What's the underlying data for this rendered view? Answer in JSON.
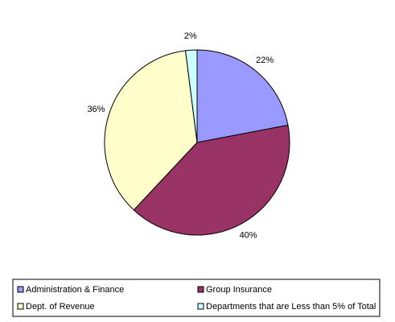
{
  "chart_data": {
    "type": "pie",
    "categories": [
      "Administration & Finance",
      "Group Insurance",
      "Dept. of Revenue",
      "Departments that are Less than 5% of Total"
    ],
    "values": [
      22,
      40,
      36,
      2
    ],
    "value_labels": [
      "22%",
      "40%",
      "36%",
      "2%"
    ],
    "colors": [
      "#9999ff",
      "#993366",
      "#ffffcc",
      "#ccffff"
    ],
    "legend": "bottom"
  }
}
